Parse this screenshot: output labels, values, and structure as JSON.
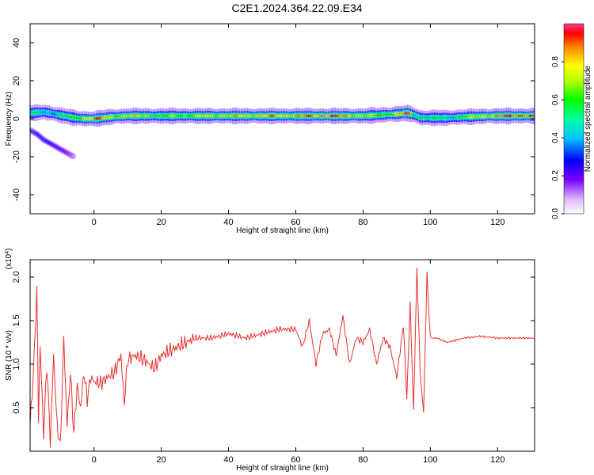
{
  "title": "C2E1.2024.364.22.09.E34",
  "chart_data": [
    {
      "type": "heatmap",
      "xlabel": "Height of straight line (km)",
      "ylabel": "Frequency (Hz)",
      "xlim": [
        -19,
        131
      ],
      "ylim": [
        -50,
        50
      ],
      "x_ticks": [
        0,
        20,
        40,
        60,
        80,
        100,
        120
      ],
      "y_ticks": [
        -40,
        -20,
        0,
        20,
        40
      ],
      "colorbar": {
        "label": "Normalized spectral amplitude",
        "range": [
          0,
          1
        ],
        "ticks": [
          0.0,
          0.2,
          0.4,
          0.6,
          0.8
        ]
      },
      "ridge": {
        "x": [
          -19,
          -15,
          -12,
          -9,
          -6,
          -3,
          0,
          5,
          10,
          20,
          30,
          40,
          50,
          60,
          70,
          80,
          85,
          90,
          93,
          95,
          97,
          100,
          105,
          110,
          120,
          131
        ],
        "freq_hz": [
          3,
          3.5,
          2.5,
          1.5,
          0.5,
          0,
          0,
          1,
          1.5,
          1.5,
          1.5,
          1.5,
          1.5,
          1.5,
          1.5,
          1.5,
          2,
          2.5,
          3,
          2,
          0.5,
          0.5,
          0.5,
          1,
          1.5,
          1.5
        ],
        "amplitude": [
          0.45,
          0.4,
          0.45,
          0.5,
          0.55,
          0.75,
          0.9,
          0.7,
          0.75,
          0.6,
          0.7,
          0.75,
          0.8,
          0.8,
          0.9,
          0.7,
          0.6,
          0.75,
          0.9,
          0.5,
          0.55,
          0.5,
          0.45,
          0.6,
          0.85,
          0.95
        ]
      },
      "secondary_branch": {
        "x": [
          -19,
          -17,
          -15,
          -12,
          -9,
          -6
        ],
        "freq_hz": [
          -6,
          -8,
          -11,
          -14,
          -17,
          -20
        ],
        "amplitude": [
          0.35,
          0.3,
          0.3,
          0.25,
          0.2,
          0.1
        ]
      }
    },
    {
      "type": "line",
      "xlabel": "Height of straight line (km)",
      "ylabel": "SNR (10 * v/v)",
      "y_multiplier": "(x10",
      "y_multiplier_exp": "4",
      "y_multiplier_close": ")",
      "xlim": [
        -19,
        131
      ],
      "ylim": [
        0.0,
        2.2
      ],
      "x_ticks": [
        0,
        20,
        40,
        60,
        80,
        100,
        120
      ],
      "y_ticks": [
        0.5,
        1.0,
        1.5,
        2.0
      ],
      "color": "#e8312f",
      "series": [
        {
          "x": [
            -19,
            -18,
            -17,
            -16.5,
            -16,
            -15,
            -14,
            -13,
            -12,
            -11,
            -10,
            -9,
            -8,
            -7,
            -6,
            -5,
            -4,
            -3,
            -2,
            -1,
            0,
            2,
            4,
            6,
            8,
            9,
            10,
            12,
            15,
            18,
            20,
            25,
            30,
            35,
            40,
            45,
            50,
            55,
            60,
            62,
            64,
            66,
            68,
            70,
            72,
            74,
            76,
            78,
            80,
            82,
            84,
            86,
            88,
            90,
            92,
            93,
            94,
            95,
            96,
            97,
            98,
            99,
            100,
            102,
            105,
            110,
            115,
            120,
            125,
            131
          ],
          "values": [
            0.3,
            0.9,
            1.85,
            0.4,
            1.2,
            0.2,
            1.0,
            0.1,
            1.1,
            0.3,
            0.05,
            1.3,
            0.3,
            0.9,
            0.2,
            0.75,
            0.5,
            0.9,
            0.6,
            0.85,
            0.8,
            0.78,
            0.85,
            0.9,
            1.1,
            0.55,
            1.05,
            1.1,
            1.05,
            0.95,
            1.1,
            1.2,
            1.3,
            1.3,
            1.35,
            1.3,
            1.35,
            1.4,
            1.4,
            1.2,
            1.5,
            1.0,
            1.35,
            1.4,
            1.1,
            1.55,
            1.0,
            1.3,
            1.25,
            1.4,
            1.0,
            1.3,
            1.2,
            0.85,
            1.45,
            0.6,
            1.7,
            0.45,
            2.1,
            0.9,
            0.45,
            2.05,
            1.3,
            1.3,
            1.25,
            1.3,
            1.32,
            1.3,
            1.3,
            1.3
          ]
        }
      ]
    }
  ]
}
